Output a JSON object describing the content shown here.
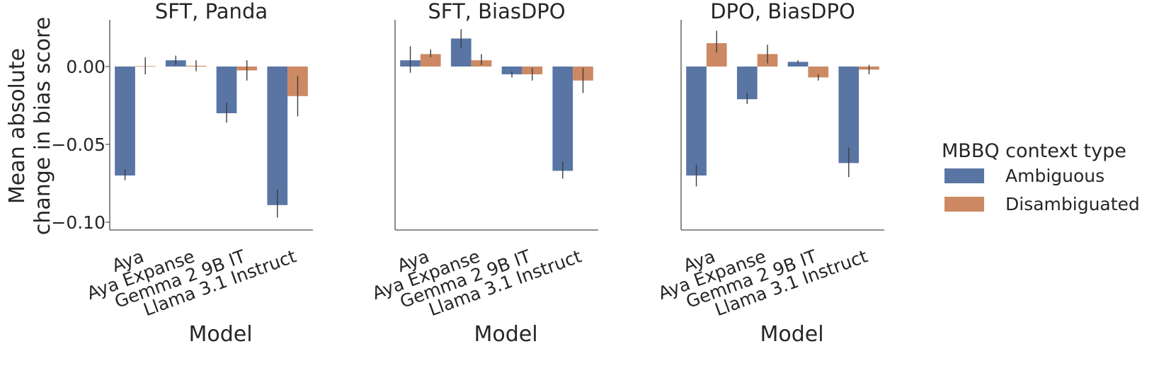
{
  "ylabel": [
    "Mean absolute",
    "change in bias score"
  ],
  "legend": {
    "title": "MBBQ context type",
    "placement": "right",
    "entries": [
      {
        "label": "Ambiguous",
        "color": "#5975a4"
      },
      {
        "label": "Disambiguated",
        "color": "#cc8963"
      }
    ]
  },
  "chart_data": [
    {
      "type": "bar",
      "title": "SFT, Panda",
      "xlabel": "Model",
      "ylabel": "Mean absolute change in bias score",
      "ylim": [
        -0.105,
        0.03
      ],
      "yticks": [
        0.0,
        -0.05,
        -0.1
      ],
      "ytick_labels": [
        "0.00",
        "−0.05",
        "−0.10"
      ],
      "categories": [
        "Aya",
        "Aya Expanse",
        "Gemma 2 9B IT",
        "Llama 3.1 Instruct"
      ],
      "series": [
        {
          "name": "Ambiguous",
          "values": [
            -0.07,
            0.004,
            -0.03,
            -0.089
          ],
          "ci": [
            [
              -0.073,
              -0.066
            ],
            [
              0.001,
              0.007
            ],
            [
              -0.036,
              -0.023
            ],
            [
              -0.097,
              -0.079
            ]
          ]
        },
        {
          "name": "Disambiguated",
          "values": [
            0.0003,
            0.0005,
            -0.0025,
            -0.019
          ],
          "ci": [
            [
              -0.005,
              0.006
            ],
            [
              -0.003,
              0.004
            ],
            [
              -0.009,
              0.004
            ],
            [
              -0.032,
              -0.006
            ]
          ]
        }
      ]
    },
    {
      "type": "bar",
      "title": "SFT, BiasDPO",
      "xlabel": "Model",
      "ylabel": "",
      "ylim": [
        -0.105,
        0.03
      ],
      "yticks": [],
      "ytick_labels": [],
      "categories": [
        "Aya",
        "Aya Expanse",
        "Gemma 2 9B IT",
        "Llama 3.1 Instruct"
      ],
      "series": [
        {
          "name": "Ambiguous",
          "values": [
            0.004,
            0.018,
            -0.005,
            -0.067
          ],
          "ci": [
            [
              -0.004,
              0.013
            ],
            [
              0.012,
              0.024
            ],
            [
              -0.007,
              -0.003
            ],
            [
              -0.072,
              -0.061
            ]
          ]
        },
        {
          "name": "Disambiguated",
          "values": [
            0.008,
            0.004,
            -0.005,
            -0.009
          ],
          "ci": [
            [
              0.006,
              0.011
            ],
            [
              0.001,
              0.008
            ],
            [
              -0.009,
              -0.001
            ],
            [
              -0.017,
              -0.001
            ]
          ]
        }
      ]
    },
    {
      "type": "bar",
      "title": "DPO, BiasDPO",
      "xlabel": "Model",
      "ylabel": "",
      "ylim": [
        -0.105,
        0.03
      ],
      "yticks": [],
      "ytick_labels": [],
      "categories": [
        "Aya",
        "Aya Expanse",
        "Gemma 2 9B IT",
        "Llama 3.1 Instruct"
      ],
      "series": [
        {
          "name": "Ambiguous",
          "values": [
            -0.07,
            -0.021,
            0.003,
            -0.062
          ],
          "ci": [
            [
              -0.077,
              -0.063
            ],
            [
              -0.024,
              -0.017
            ],
            [
              0.002,
              0.004
            ],
            [
              -0.071,
              -0.052
            ]
          ]
        },
        {
          "name": "Disambiguated",
          "values": [
            0.015,
            0.008,
            -0.007,
            -0.002
          ],
          "ci": [
            [
              0.009,
              0.023
            ],
            [
              0.002,
              0.014
            ],
            [
              -0.009,
              -0.005
            ],
            [
              -0.005,
              0.001
            ]
          ]
        }
      ]
    }
  ]
}
